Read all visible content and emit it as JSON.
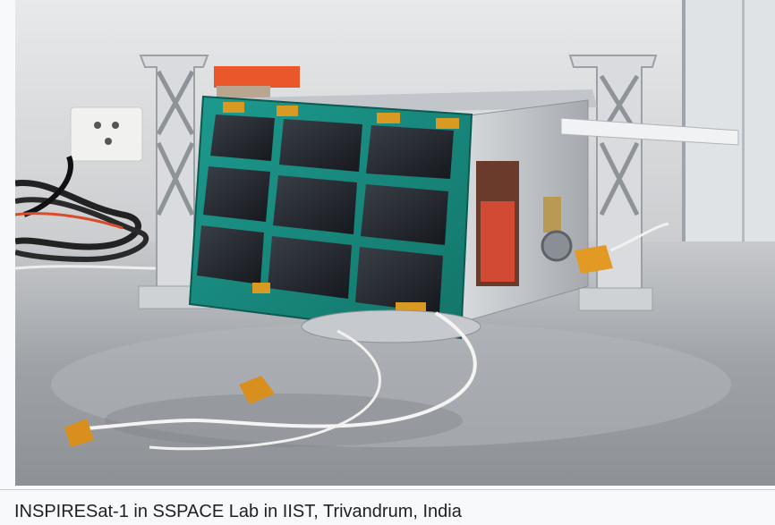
{
  "image": {
    "alt": "",
    "icon": "photo-icon"
  },
  "caption": {
    "text": "INSPIRESat-1 in SSPACE Lab in IIST, Trivandrum, India"
  }
}
